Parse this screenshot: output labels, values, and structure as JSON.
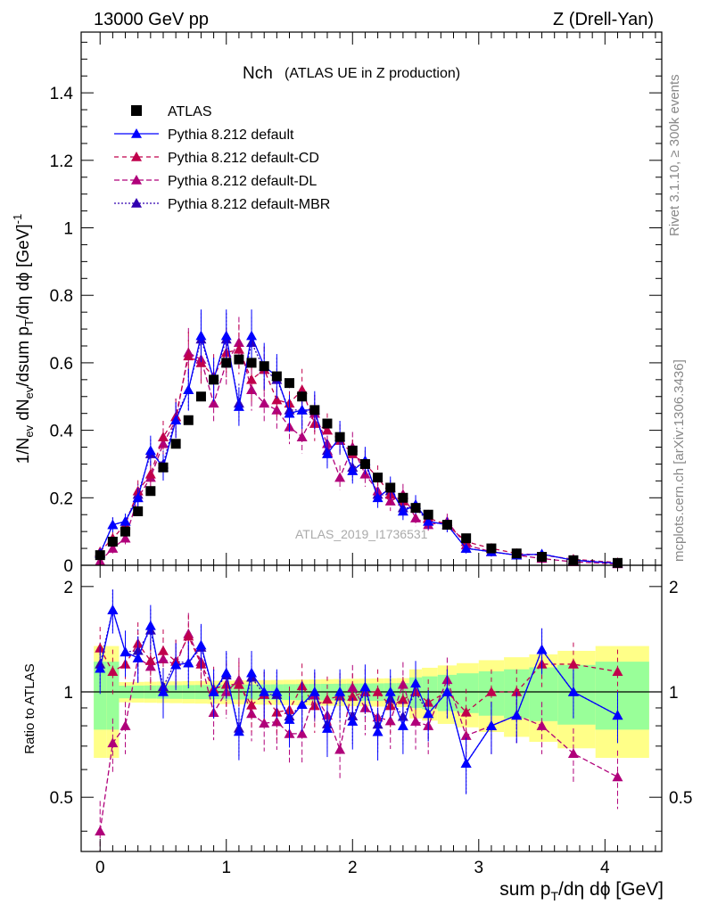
{
  "header": {
    "left": "13000 GeV pp",
    "right": "Z (Drell-Yan)"
  },
  "side_labels": {
    "rivet": "Rivet 3.1.10, ≥ 300k events",
    "mcplots": "mcplots.cern.ch [arXiv:1306.3436]"
  },
  "chart_data": {
    "type": "line",
    "title_main": "Nch",
    "title_sub": "(ATLAS UE in Z production)",
    "watermark": "ATLAS_2019_I1736531",
    "xlabel": "sum p_T/dη dϕ [GeV]",
    "ylabel": "1/N_ev dN_ev/dsum p_T/dη dϕ [GeV]^-1",
    "ratio_ylabel": "Ratio to ATLAS",
    "xlim": [
      -0.15,
      4.45
    ],
    "ylim": [
      0,
      1.58
    ],
    "ratio_ylim": [
      0.35,
      2.3
    ],
    "x_ticks": [
      "0",
      "1",
      "2",
      "3",
      "4"
    ],
    "y_ticks": [
      "0",
      "0.2",
      "0.4",
      "0.6",
      "0.8",
      "1",
      "1.2",
      "1.4"
    ],
    "ratio_ticks": [
      "0.5",
      "1",
      "2"
    ],
    "legend": [
      "ATLAS",
      "Pythia 8.212 default",
      "Pythia 8.212 default-CD",
      "Pythia 8.212 default-DL",
      "Pythia 8.212 default-MBR"
    ],
    "x": [
      0.0,
      0.1,
      0.2,
      0.3,
      0.4,
      0.5,
      0.6,
      0.7,
      0.8,
      0.9,
      1.0,
      1.1,
      1.2,
      1.3,
      1.4,
      1.5,
      1.6,
      1.7,
      1.8,
      1.9,
      2.0,
      2.1,
      2.2,
      2.3,
      2.4,
      2.5,
      2.6,
      2.75,
      2.9,
      3.1,
      3.3,
      3.5,
      3.75,
      4.1
    ],
    "series": [
      {
        "name": "ATLAS",
        "color": "#000000",
        "values": [
          0.03,
          0.07,
          0.1,
          0.16,
          0.22,
          0.29,
          0.36,
          0.43,
          0.5,
          0.55,
          0.6,
          0.61,
          0.6,
          0.59,
          0.56,
          0.54,
          0.5,
          0.46,
          0.42,
          0.38,
          0.34,
          0.3,
          0.26,
          0.23,
          0.2,
          0.17,
          0.15,
          0.12,
          0.08,
          0.05,
          0.035,
          0.025,
          0.015,
          0.007
        ]
      },
      {
        "name": "Pythia 8.212 default",
        "color": "#0000ff",
        "values": [
          0.035,
          0.12,
          0.13,
          0.2,
          0.34,
          0.29,
          0.43,
          0.52,
          0.68,
          0.55,
          0.68,
          0.47,
          0.68,
          0.59,
          0.56,
          0.45,
          0.46,
          0.46,
          0.33,
          0.38,
          0.28,
          0.31,
          0.2,
          0.23,
          0.16,
          0.18,
          0.13,
          0.12,
          0.05,
          0.04,
          0.03,
          0.033,
          0.015,
          0.006
        ]
      },
      {
        "name": "Pythia 8.212 default-CD",
        "color": "#c0004c",
        "values": [
          0.04,
          0.08,
          0.12,
          0.22,
          0.27,
          0.38,
          0.44,
          0.62,
          0.6,
          0.56,
          0.63,
          0.64,
          0.55,
          0.58,
          0.49,
          0.48,
          0.52,
          0.42,
          0.4,
          0.37,
          0.33,
          0.3,
          0.26,
          0.21,
          0.19,
          0.17,
          0.14,
          0.12,
          0.07,
          0.05,
          0.035,
          0.03,
          0.018,
          0.008
        ]
      },
      {
        "name": "Pythia 8.212 default-DL",
        "color": "#b0007a",
        "values": [
          0.012,
          0.05,
          0.08,
          0.2,
          0.26,
          0.36,
          0.43,
          0.63,
          0.61,
          0.48,
          0.6,
          0.66,
          0.52,
          0.48,
          0.46,
          0.41,
          0.38,
          0.45,
          0.36,
          0.26,
          0.35,
          0.27,
          0.22,
          0.19,
          0.21,
          0.14,
          0.12,
          0.13,
          0.06,
          0.04,
          0.03,
          0.02,
          0.01,
          0.004
        ]
      },
      {
        "name": "Pythia 8.212 default-MBR",
        "color": "#3000b0",
        "values": [
          0.036,
          0.12,
          0.13,
          0.21,
          0.33,
          0.3,
          0.44,
          0.52,
          0.67,
          0.55,
          0.67,
          0.48,
          0.66,
          0.58,
          0.55,
          0.46,
          0.46,
          0.45,
          0.34,
          0.37,
          0.29,
          0.3,
          0.21,
          0.22,
          0.17,
          0.17,
          0.13,
          0.12,
          0.05,
          0.04,
          0.03,
          0.033,
          0.015,
          0.006
        ]
      }
    ]
  }
}
